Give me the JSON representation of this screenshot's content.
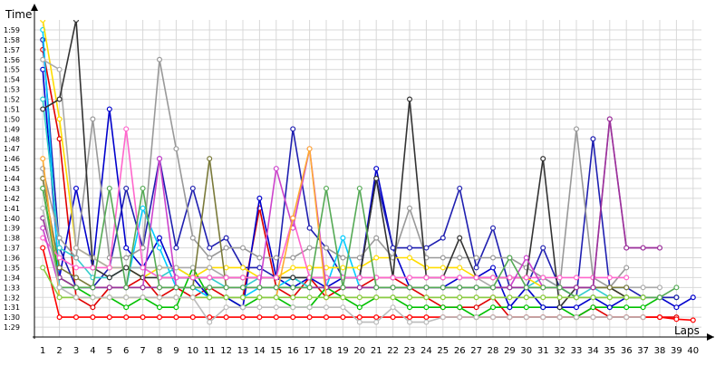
{
  "chart_data": {
    "type": "line",
    "ylabel": "Time",
    "xlabel": "Laps",
    "x": [
      1,
      2,
      3,
      4,
      5,
      6,
      7,
      8,
      9,
      10,
      11,
      12,
      13,
      14,
      15,
      16,
      17,
      18,
      19,
      20,
      21,
      22,
      23,
      24,
      25,
      26,
      27,
      28,
      29,
      30,
      31,
      32,
      33,
      34,
      35,
      36,
      37,
      38,
      39,
      40
    ],
    "xlim": [
      1,
      40
    ],
    "ylim": [
      88,
      120
    ],
    "y_tick_values": [
      89,
      90,
      91,
      92,
      93,
      94,
      95,
      96,
      97,
      98,
      99,
      100,
      101,
      102,
      103,
      104,
      105,
      106,
      107,
      108,
      109,
      110,
      111,
      112,
      113,
      114,
      115,
      116,
      117,
      118,
      119
    ],
    "y_tick_labels": [
      "1:29",
      "1:30",
      "1:31",
      "1:32",
      "1:33",
      "1:34",
      "1:35",
      "1:36",
      "1:37",
      "1:38",
      "1:39",
      "1:40",
      "1:41",
      "1:42",
      "1:43",
      "1:44",
      "1:45",
      "1:46",
      "1:47",
      "1:48",
      "1:49",
      "1:50",
      "1:51",
      "1:52",
      "1:53",
      "1:54",
      "1:55",
      "1:56",
      "1:57",
      "1:58",
      "1:59"
    ],
    "x_tick_labels": [
      "1",
      "2",
      "3",
      "4",
      "5",
      "6",
      "7",
      "8",
      "9",
      "10",
      "11",
      "12",
      "13",
      "14",
      "15",
      "16",
      "17",
      "18",
      "19",
      "20",
      "21",
      "22",
      "23",
      "24",
      "25",
      "26",
      "27",
      "28",
      "29",
      "30",
      "31",
      "32",
      "33",
      "34",
      "35",
      "36",
      "37",
      "38",
      "39",
      "40"
    ],
    "grid": true,
    "series": [
      {
        "color": "#e00000",
        "values": [
          117,
          108,
          92,
          91,
          93,
          93,
          94,
          92,
          93,
          92,
          93,
          92,
          92,
          101,
          93,
          92,
          94,
          92,
          93,
          93,
          94,
          94,
          93,
          92,
          91,
          91,
          91,
          92,
          90,
          90,
          90,
          90,
          90,
          91,
          90,
          90,
          90,
          90,
          90,
          null
        ]
      },
      {
        "color": "#ff0000",
        "values": [
          97,
          90,
          90,
          90,
          90,
          90,
          90,
          90,
          90,
          90,
          90,
          90,
          90,
          90,
          90,
          90,
          90,
          90,
          90,
          90,
          90,
          90,
          90,
          90,
          90,
          90,
          90,
          90,
          90,
          90,
          90,
          90,
          90,
          90,
          90,
          90,
          90,
          90,
          89.8,
          89.7
        ]
      },
      {
        "color": "#00c000",
        "values": [
          103,
          94,
          93,
          92,
          92,
          91,
          92,
          91,
          91,
          95,
          92,
          92,
          91,
          92,
          92,
          91,
          91,
          93,
          92,
          91,
          92,
          92,
          91,
          91,
          91,
          91,
          90,
          91,
          91,
          91,
          91,
          91,
          90,
          91,
          91,
          91,
          91,
          92,
          92,
          null
        ]
      },
      {
        "color": "#0000cc",
        "values": [
          115,
          94,
          103,
          95,
          111,
          97,
          95,
          98,
          94,
          94,
          92,
          92,
          91,
          102,
          94,
          93,
          94,
          93,
          94,
          94,
          105,
          97,
          93,
          93,
          93,
          94,
          94,
          95,
          91,
          93,
          91,
          91,
          91,
          92,
          91,
          92,
          92,
          92,
          91,
          92
        ]
      },
      {
        "color": "#1f1fb0",
        "values": [
          118,
          97,
          93,
          93,
          95,
          103,
          97,
          106,
          97,
          103,
          97,
          98,
          95,
          95,
          94,
          109,
          99,
          97,
          94,
          94,
          104,
          97,
          97,
          97,
          98,
          103,
          95,
          99,
          93,
          93,
          97,
          93,
          92,
          108,
          93,
          93,
          92,
          92,
          92,
          null
        ]
      },
      {
        "color": "#00ccff",
        "values": [
          119,
          93,
          93,
          93,
          93,
          93,
          101,
          97,
          93,
          93,
          92,
          92,
          92,
          93,
          93,
          94,
          93,
          93,
          98,
          93,
          93,
          93,
          93,
          93,
          93,
          93,
          93,
          93,
          93,
          93,
          93,
          93,
          93,
          93,
          93,
          93,
          null,
          null,
          null,
          null
        ]
      },
      {
        "color": "#33cccc",
        "values": [
          112,
          97,
          96,
          94,
          94,
          95,
          95,
          94,
          95,
          94,
          94,
          93,
          93,
          94,
          94,
          94,
          93,
          93,
          93,
          93,
          93,
          93,
          93,
          93,
          93,
          93,
          93,
          93,
          93,
          93,
          94,
          93,
          92,
          93,
          92,
          92,
          92,
          null,
          null,
          null
        ]
      },
      {
        "color": "#40c8c8",
        "values": [
          null,
          null,
          null,
          null,
          null,
          null,
          null,
          null,
          null,
          null,
          null,
          null,
          null,
          null,
          null,
          null,
          null,
          null,
          null,
          null,
          null,
          null,
          null,
          null,
          null,
          null,
          null,
          null,
          null,
          null,
          null,
          null,
          null,
          null,
          null,
          null,
          null,
          null,
          null,
          null
        ]
      },
      {
        "color": "#ffdd00",
        "values": [
          120,
          110,
          97,
          96,
          95,
          95,
          94,
          95,
          95,
          94,
          95,
          95,
          95,
          94,
          94,
          95,
          95,
          95,
          95,
          95,
          96,
          96,
          96,
          95,
          95,
          95,
          94,
          94,
          94,
          94,
          93,
          93,
          93,
          93,
          93,
          92,
          92,
          92,
          null,
          null
        ]
      },
      {
        "color": "#999999",
        "values": [
          105,
          98,
          96,
          110,
          96,
          96,
          97,
          116,
          107,
          98,
          96,
          97,
          97,
          96,
          96,
          96,
          97,
          97,
          96,
          96,
          98,
          96,
          101,
          96,
          96,
          96,
          96,
          96,
          96,
          95,
          94,
          93,
          109,
          94,
          93,
          95,
          null,
          null,
          null,
          null
        ]
      },
      {
        "color": "#aaaaaa",
        "values": [
          116,
          115,
          97,
          96,
          95,
          95,
          95,
          95,
          95,
          95,
          95,
          94,
          94,
          94,
          94,
          94,
          94,
          94,
          94,
          94,
          94,
          94,
          94,
          94,
          94,
          94,
          94,
          93,
          93,
          93,
          93,
          93,
          93,
          93,
          93,
          93,
          93,
          93,
          null,
          null
        ]
      },
      {
        "color": "#333333",
        "values": [
          111,
          112,
          120,
          95,
          94,
          95,
          94,
          94,
          94,
          94,
          94,
          94,
          94,
          94,
          94,
          94,
          94,
          94,
          94,
          94,
          104,
          94,
          112,
          94,
          94,
          98,
          94,
          94,
          94,
          94,
          106,
          91,
          93,
          93,
          93,
          92,
          92,
          null,
          null,
          null
        ]
      },
      {
        "color": "#7a7a3a",
        "values": [
          104,
          95,
          94,
          93,
          93,
          93,
          93,
          93,
          93,
          93,
          106,
          93,
          93,
          93,
          93,
          93,
          93,
          93,
          93,
          93,
          93,
          93,
          93,
          93,
          93,
          93,
          93,
          93,
          93,
          93,
          93,
          93,
          93,
          93,
          93,
          93,
          null,
          null,
          null,
          null
        ]
      },
      {
        "color": "#ff66cc",
        "values": [
          98,
          96,
          95,
          95,
          95,
          109,
          95,
          94,
          94,
          94,
          94,
          94,
          94,
          94,
          94,
          100,
          94,
          94,
          94,
          94,
          94,
          94,
          94,
          94,
          94,
          94,
          94,
          94,
          94,
          94,
          94,
          94,
          94,
          94,
          94,
          94,
          null,
          null,
          null,
          null
        ]
      },
      {
        "color": "#cc44cc",
        "values": [
          99,
          93,
          93,
          93,
          93,
          93,
          93,
          106,
          93,
          93,
          93,
          93,
          93,
          93,
          105,
          99,
          107,
          93,
          93,
          93,
          93,
          93,
          93,
          93,
          93,
          93,
          93,
          93,
          93,
          96,
          93,
          93,
          93,
          93,
          110,
          97,
          97,
          97,
          null,
          null
        ]
      },
      {
        "color": "#993399",
        "values": [
          100,
          94,
          93,
          93,
          93,
          93,
          93,
          93,
          93,
          93,
          93,
          93,
          93,
          93,
          93,
          93,
          93,
          93,
          93,
          93,
          93,
          93,
          93,
          93,
          93,
          93,
          93,
          93,
          93,
          93,
          93,
          93,
          93,
          93,
          110,
          97,
          97,
          97,
          null,
          null
        ]
      },
      {
        "color": "#ffaa33",
        "values": [
          106,
          92,
          92,
          92,
          92,
          92,
          92,
          92,
          92,
          92,
          92,
          92,
          92,
          92,
          92,
          100,
          107,
          92,
          92,
          92,
          92,
          92,
          92,
          92,
          92,
          92,
          92,
          92,
          92,
          92,
          92,
          92,
          92,
          92,
          92,
          92,
          null,
          null,
          null,
          null
        ]
      },
      {
        "color": "#55aa55",
        "values": [
          103,
          93,
          93,
          93,
          103,
          93,
          103,
          93,
          93,
          93,
          93,
          93,
          93,
          93,
          93,
          93,
          93,
          103,
          93,
          103,
          93,
          93,
          93,
          93,
          93,
          93,
          93,
          93,
          96,
          93,
          93,
          93,
          92,
          92,
          92,
          92,
          92,
          92,
          93,
          null
        ]
      },
      {
        "color": "#88cc44",
        "values": [
          95,
          92,
          92,
          92,
          92,
          92,
          92,
          92,
          92,
          92,
          92,
          92,
          92,
          92,
          92,
          92,
          92,
          92,
          92,
          92,
          92,
          92,
          92,
          92,
          92,
          92,
          92,
          92,
          92,
          92,
          92,
          92,
          92,
          92,
          92,
          92,
          92,
          null,
          null,
          null
        ]
      },
      {
        "color": "#bbbbbb",
        "values": [
          101,
          93,
          92,
          92,
          92,
          92,
          92,
          92,
          92,
          92,
          89.5,
          91,
          91,
          91,
          91,
          91,
          91,
          91,
          91,
          89.5,
          89.5,
          91,
          89.5,
          89.5,
          90,
          90,
          90,
          90,
          90,
          90,
          90,
          90,
          90,
          90,
          90,
          90,
          90,
          null,
          null,
          null
        ]
      }
    ]
  }
}
